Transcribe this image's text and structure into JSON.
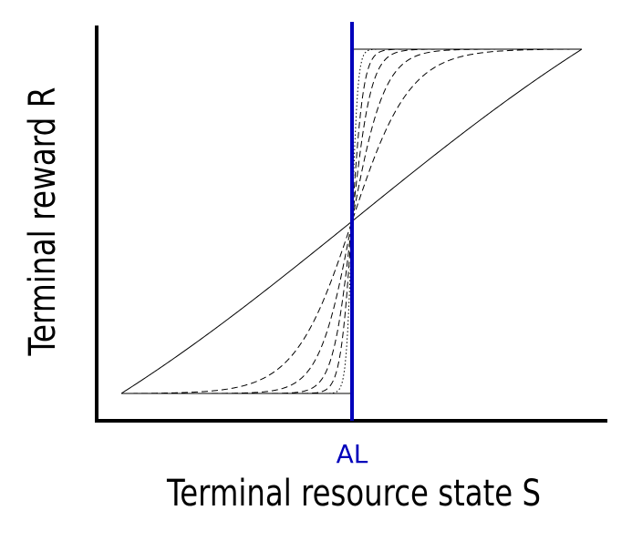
{
  "chart_data": {
    "type": "line",
    "xlabel": "Terminal resource state S",
    "ylabel": "Terminal reward R",
    "x_ticks": [
      {
        "x": 0,
        "label": "AL"
      }
    ],
    "xlim": [
      -1,
      1
    ],
    "ylim": [
      -1,
      1
    ],
    "grid": false,
    "legend": "none",
    "threshold_x": 0,
    "threshold_color": "#0000bb",
    "curve_color": "#000000",
    "curves": [
      {
        "style": "solid",
        "k": 0.5
      },
      {
        "style": "dashed",
        "k": 4
      },
      {
        "style": "dashed",
        "k": 7
      },
      {
        "style": "dashed",
        "k": 12
      },
      {
        "style": "dashed",
        "k": 20
      },
      {
        "style": "dotted",
        "k": 40
      },
      {
        "style": "solid",
        "k": 1000
      }
    ],
    "series_shape": "R = tanh(k*S)/tanh(k)"
  }
}
